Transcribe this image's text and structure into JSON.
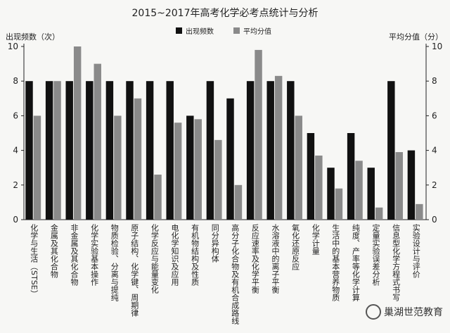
{
  "chart_data": {
    "type": "bar",
    "title": "2015~2017年高考化学必考点统计与分析",
    "ylabel_left": "出现频数（次）",
    "ylabel_right": "平均分值（分）",
    "ylim_left": [
      0,
      10
    ],
    "ylim_right": [
      0,
      10
    ],
    "yticks_left": [
      "0",
      "2",
      "4",
      "6",
      "8",
      "10"
    ],
    "yticks_right": [
      "0",
      "2",
      "4",
      "6",
      "8",
      "10"
    ],
    "legend_position": "top-center",
    "categories": [
      "化学与生活（STSE）",
      "金属及其化合物",
      "非金属及其化合物",
      "化学实验基本操作",
      "物质检验、分离与提纯",
      "原子结构、化学键、周期律",
      "化学反应与能量变化",
      "电化学知识及应用",
      "有机物结构及性质",
      "同分异构体",
      "高分子化合物及有机合成路线",
      "反应速率及化学平衡",
      "水溶液中的离子平衡",
      "氧化还原反应",
      "化学计量",
      "生活中的基本营养物质",
      "纯度、产率等化学计算",
      "定量实验误差分析",
      "信息型化学方程式书写",
      "实验设计与评价"
    ],
    "series": [
      {
        "name": "出现频数",
        "color": "#111111",
        "values": [
          8,
          8,
          8,
          8,
          8,
          8,
          8,
          8,
          6,
          8,
          7,
          8,
          8,
          8,
          5,
          3,
          5,
          3,
          8,
          4
        ]
      },
      {
        "name": "平均分值",
        "color": "#8a8a8a",
        "values": [
          6,
          8,
          10,
          9,
          6,
          7,
          2.6,
          5.6,
          5.8,
          4.6,
          2,
          9.8,
          8.3,
          6,
          3.7,
          1.8,
          3.4,
          0.7,
          3.9,
          0.9
        ]
      }
    ]
  },
  "watermark_text": "巢湖世范教育"
}
